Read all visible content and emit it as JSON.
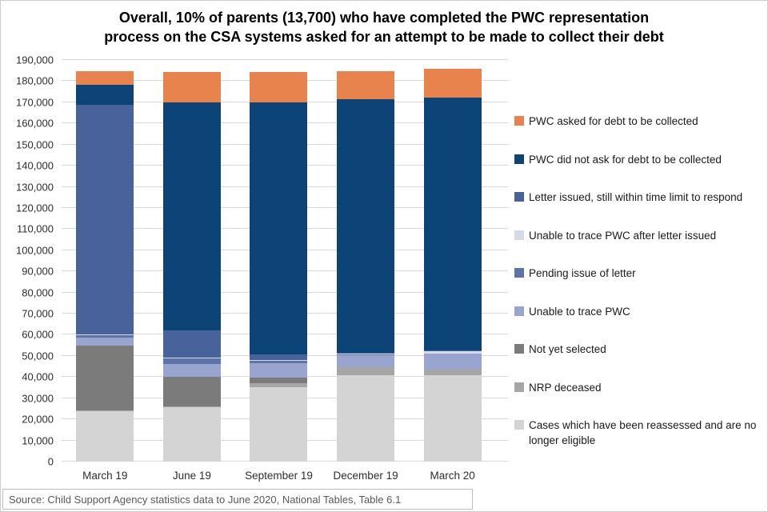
{
  "title": {
    "full": "Overall, 10% of parents (13,700) who have completed the PWC representation process on the CSA systems asked for an attempt to be made to collect their debt",
    "lines": [
      "Overall, 10% of parents (13,700) who have completed the PWC representation",
      "process on the CSA systems asked for an attempt to be made to collect their debt"
    ]
  },
  "source": {
    "text": "Source: Child Support Agency statistics data to June 2020, National Tables, Table 6.1"
  },
  "chart_data": {
    "type": "bar",
    "stacked": true,
    "grid": true,
    "legend_position": "right",
    "categories": [
      "March 19",
      "June 19",
      "September 19",
      "December 19",
      "March 20"
    ],
    "ylim": [
      0,
      190000
    ],
    "ytick_step": 10000,
    "yticks": [
      "0",
      "10,000",
      "20,000",
      "30,000",
      "40,000",
      "50,000",
      "60,000",
      "70,000",
      "80,000",
      "90,000",
      "100,000",
      "110,000",
      "120,000",
      "130,000",
      "140,000",
      "150,000",
      "160,000",
      "170,000",
      "180,000",
      "190,000"
    ],
    "series": [
      {
        "name": "Cases which have been reassessed and are no longer eligible",
        "color": "#D4D4D4",
        "values": [
          24000,
          25700,
          35300,
          41000,
          40700
        ]
      },
      {
        "name": "NRP deceased",
        "color": "#A6A6A6",
        "values": [
          300,
          300,
          1900,
          3500,
          2800
        ]
      },
      {
        "name": "Not yet selected",
        "color": "#7B7B7B",
        "values": [
          30500,
          14100,
          2400,
          300,
          200
        ]
      },
      {
        "name": "Unable to trace PWC",
        "color": "#9AA5CF",
        "values": [
          3800,
          6100,
          6800,
          5700,
          7300
        ]
      },
      {
        "name": "Pending issue of letter",
        "color": "#5E74A9",
        "values": [
          1200,
          2700,
          1300,
          300,
          200
        ]
      },
      {
        "name": "Unable to trace PWC after letter issued",
        "color": "#D5DAE7",
        "values": [
          500,
          500,
          500,
          500,
          1100
        ]
      },
      {
        "name": "Letter issued, still within time limit to respond",
        "color": "#48629B",
        "values": [
          108700,
          12800,
          2600,
          300,
          200
        ]
      },
      {
        "name": "PWC did not ask for debt to be collected",
        "color": "#0D4478",
        "values": [
          9300,
          107700,
          119300,
          119900,
          119800
        ]
      },
      {
        "name": "PWC asked for debt to be collected",
        "color": "#E8834E",
        "values": [
          6300,
          14300,
          14200,
          13300,
          13700
        ]
      }
    ],
    "totals": [
      184600,
      184200,
      184300,
      184800,
      186000
    ]
  }
}
